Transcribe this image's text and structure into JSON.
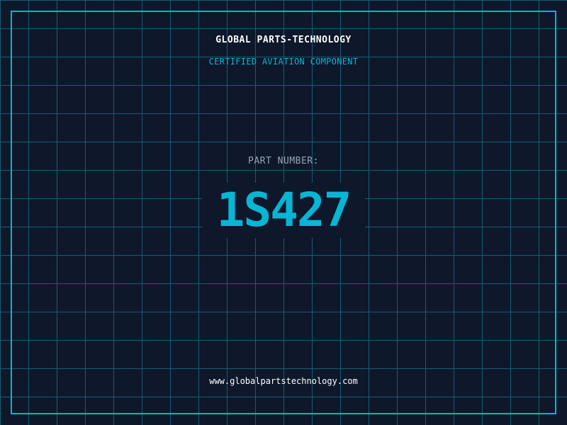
{
  "header": {
    "brand": "GLOBAL PARTS-TECHNOLOGY",
    "subtitle": "CERTIFIED AVIATION COMPONENT"
  },
  "part": {
    "label": "PART NUMBER:",
    "number": "1S427"
  },
  "footer": {
    "url": "www.globalpartstechnology.com"
  },
  "colors": {
    "background": "#0f172a",
    "grid": "#155e75",
    "accent": "#06b6d4",
    "muted": "#94a3b8"
  }
}
